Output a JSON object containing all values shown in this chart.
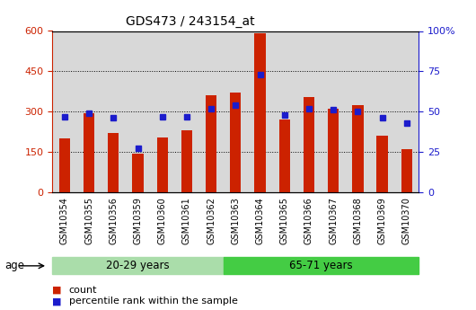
{
  "title": "GDS473 / 243154_at",
  "categories": [
    "GSM10354",
    "GSM10355",
    "GSM10356",
    "GSM10359",
    "GSM10360",
    "GSM10361",
    "GSM10362",
    "GSM10363",
    "GSM10364",
    "GSM10365",
    "GSM10366",
    "GSM10367",
    "GSM10368",
    "GSM10369",
    "GSM10370"
  ],
  "counts": [
    200,
    295,
    220,
    145,
    205,
    230,
    360,
    370,
    590,
    270,
    355,
    310,
    325,
    210,
    160
  ],
  "percentile_ranks": [
    47,
    49,
    46,
    27,
    47,
    47,
    52,
    54,
    73,
    48,
    52,
    51,
    50,
    46,
    43
  ],
  "group1_label": "20-29 years",
  "group2_label": "65-71 years",
  "group1_count": 7,
  "group2_count": 8,
  "bar_color": "#CC2200",
  "dot_color": "#1C1CCC",
  "group1_bg": "#AADDAA",
  "group2_bg": "#44CC44",
  "age_label": "age",
  "legend_count": "count",
  "legend_pct": "percentile rank within the sample",
  "ylim_left": [
    0,
    600
  ],
  "ylim_right": [
    0,
    100
  ],
  "yticks_left": [
    0,
    150,
    300,
    450,
    600
  ],
  "yticks_right": [
    0,
    25,
    50,
    75,
    100
  ],
  "bar_width": 0.45,
  "plot_bg": "#D8D8D8"
}
